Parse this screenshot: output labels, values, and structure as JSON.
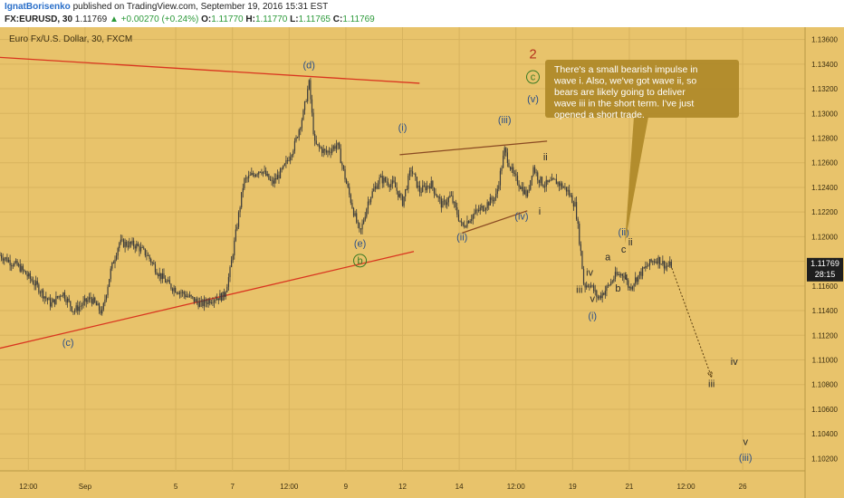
{
  "header": {
    "author": "IgnatBorisenko",
    "published_text": "published on TradingView.com, September 19, 2016 15:31 EST",
    "symbol": "FX:EURUSD, 30",
    "last": "1.11769",
    "change": "+0.00270 (+0.24%)",
    "o_label": "O:",
    "o_value": "1.11770",
    "h_label": "H:",
    "h_value": "1.11770",
    "l_label": "L:",
    "l_value": "1.11765",
    "c_label": "C:",
    "c_value": "1.11769"
  },
  "colors": {
    "background": "#e8c36b",
    "grid": "#d7b35e",
    "candles": "#3b3b3b",
    "trendline_red": "#d9351f",
    "trendline_brown": "#8a4a22",
    "label_blue": "#2b4f88",
    "label_dark": "#2b2b2b",
    "label_red": "#b5321e",
    "label_green": "#3a7a25",
    "callout_bg": "#b08a2a",
    "price_tag": "#1e1e1e"
  },
  "chart_data": {
    "type": "candlestick",
    "title": "Euro Fx/U.S. Dollar, 30, FXCM",
    "ylim": [
      1.101,
      1.137
    ],
    "y_ticks": [
      "1.13600",
      "1.13400",
      "1.13200",
      "1.13000",
      "1.12800",
      "1.12600",
      "1.12400",
      "1.12200",
      "1.12000",
      "1.11800",
      "1.11600",
      "1.11400",
      "1.11200",
      "1.11000",
      "1.10800",
      "1.10600",
      "1.10400",
      "1.10200"
    ],
    "x_ticks": [
      {
        "label": "12:00",
        "x": 0.5
      },
      {
        "label": "Sep",
        "x": 1.5
      },
      {
        "label": "5",
        "x": 3.1
      },
      {
        "label": "7",
        "x": 4.1
      },
      {
        "label": "12:00",
        "x": 5.1
      },
      {
        "label": "9",
        "x": 6.1
      },
      {
        "label": "12",
        "x": 7.1
      },
      {
        "label": "14",
        "x": 8.1
      },
      {
        "label": "12:00",
        "x": 9.1
      },
      {
        "label": "19",
        "x": 10.1
      },
      {
        "label": "21",
        "x": 11.1
      },
      {
        "label": "12:00",
        "x": 12.1
      },
      {
        "label": "26",
        "x": 13.1
      }
    ],
    "xlim": [
      0,
      14.2
    ],
    "price_path": [
      [
        0.0,
        1.1185
      ],
      [
        0.35,
        1.1175
      ],
      [
        0.65,
        1.116
      ],
      [
        0.9,
        1.1145
      ],
      [
        1.1,
        1.1155
      ],
      [
        1.3,
        1.114
      ],
      [
        1.6,
        1.115
      ],
      [
        1.8,
        1.1138
      ],
      [
        1.95,
        1.1172
      ],
      [
        2.1,
        1.1195
      ],
      [
        2.4,
        1.1193
      ],
      [
        2.6,
        1.1185
      ],
      [
        2.8,
        1.117
      ],
      [
        3.0,
        1.116
      ],
      [
        3.3,
        1.1152
      ],
      [
        3.55,
        1.1145
      ],
      [
        3.75,
        1.115
      ],
      [
        3.95,
        1.1152
      ],
      [
        4.05,
        1.117
      ],
      [
        4.2,
        1.1215
      ],
      [
        4.3,
        1.1245
      ],
      [
        4.45,
        1.125
      ],
      [
        4.6,
        1.1255
      ],
      [
        4.8,
        1.1243
      ],
      [
        5.0,
        1.1255
      ],
      [
        5.2,
        1.1275
      ],
      [
        5.35,
        1.13
      ],
      [
        5.45,
        1.1325
      ],
      [
        5.55,
        1.1275
      ],
      [
        5.75,
        1.1268
      ],
      [
        5.95,
        1.1275
      ],
      [
        6.1,
        1.1245
      ],
      [
        6.25,
        1.1218
      ],
      [
        6.35,
        1.1202
      ],
      [
        6.5,
        1.123
      ],
      [
        6.7,
        1.1247
      ],
      [
        6.95,
        1.1242
      ],
      [
        7.1,
        1.1228
      ],
      [
        7.25,
        1.1255
      ],
      [
        7.4,
        1.1237
      ],
      [
        7.6,
        1.1243
      ],
      [
        7.8,
        1.1225
      ],
      [
        7.95,
        1.1233
      ],
      [
        8.15,
        1.1208
      ],
      [
        8.35,
        1.1218
      ],
      [
        8.55,
        1.1225
      ],
      [
        8.75,
        1.1233
      ],
      [
        8.9,
        1.127
      ],
      [
        9.05,
        1.125
      ],
      [
        9.2,
        1.124
      ],
      [
        9.3,
        1.1233
      ],
      [
        9.4,
        1.1257
      ],
      [
        9.5,
        1.1247
      ],
      [
        9.6,
        1.1242
      ],
      [
        9.8,
        1.1245
      ],
      [
        10.0,
        1.1238
      ],
      [
        10.15,
        1.1225
      ],
      [
        10.25,
        1.1185
      ],
      [
        10.3,
        1.116
      ],
      [
        10.4,
        1.1162
      ],
      [
        10.55,
        1.115
      ],
      [
        10.7,
        1.1158
      ],
      [
        10.85,
        1.1168
      ],
      [
        11.0,
        1.117
      ],
      [
        11.1,
        1.1158
      ],
      [
        11.2,
        1.1165
      ],
      [
        11.35,
        1.1173
      ],
      [
        11.5,
        1.118
      ],
      [
        11.6,
        1.1182
      ],
      [
        11.75,
        1.1176
      ],
      [
        11.85,
        1.1177
      ]
    ],
    "trendlines": [
      {
        "color": "red",
        "from": [
          0.0,
          1.13455
        ],
        "to": [
          7.4,
          1.13245
        ]
      },
      {
        "color": "red",
        "from": [
          0.0,
          1.11095
        ],
        "to": [
          7.3,
          1.1188
        ]
      },
      {
        "color": "brown",
        "from": [
          7.05,
          1.12665
        ],
        "to": [
          9.65,
          1.12775
        ]
      },
      {
        "color": "brown",
        "from": [
          8.15,
          1.1203
        ],
        "to": [
          9.3,
          1.1221
        ]
      }
    ],
    "projection": {
      "from": [
        11.85,
        1.11745
      ],
      "to": [
        12.55,
        1.1086
      ]
    },
    "wave_labels": [
      {
        "text": "(d)",
        "x": 5.45,
        "y": 1.13365,
        "color": "blue"
      },
      {
        "text": "(c)",
        "x": 1.2,
        "y": 1.11115,
        "color": "blue"
      },
      {
        "text": "(e)",
        "x": 6.35,
        "y": 1.1192,
        "color": "blue"
      },
      {
        "text": "b",
        "x": 6.35,
        "y": 1.1178,
        "color": "green",
        "circled": true
      },
      {
        "text": "(i)",
        "x": 7.1,
        "y": 1.1286,
        "color": "blue"
      },
      {
        "text": "(iii)",
        "x": 8.9,
        "y": 1.1292,
        "color": "blue"
      },
      {
        "text": "(v)",
        "x": 9.4,
        "y": 1.1309,
        "color": "blue"
      },
      {
        "text": "c",
        "x": 9.4,
        "y": 1.1327,
        "color": "green",
        "circled": true
      },
      {
        "text": "2",
        "x": 9.4,
        "y": 1.1346,
        "color": "red"
      },
      {
        "text": "(ii)",
        "x": 8.15,
        "y": 1.1197,
        "color": "blue"
      },
      {
        "text": "(iv)",
        "x": 9.2,
        "y": 1.1214,
        "color": "blue"
      },
      {
        "text": "ii",
        "x": 9.62,
        "y": 1.1262,
        "color": "dark"
      },
      {
        "text": "i",
        "x": 9.52,
        "y": 1.1218,
        "color": "dark"
      },
      {
        "text": "iii",
        "x": 10.22,
        "y": 1.11545,
        "color": "dark"
      },
      {
        "text": "iv",
        "x": 10.4,
        "y": 1.11685,
        "color": "dark"
      },
      {
        "text": "v",
        "x": 10.45,
        "y": 1.1147,
        "color": "dark"
      },
      {
        "text": "(i)",
        "x": 10.45,
        "y": 1.1133,
        "color": "blue"
      },
      {
        "text": "a",
        "x": 10.72,
        "y": 1.1181,
        "color": "dark"
      },
      {
        "text": "b",
        "x": 10.9,
        "y": 1.11555,
        "color": "dark"
      },
      {
        "text": "(ii)",
        "x": 11.0,
        "y": 1.1201,
        "color": "blue"
      },
      {
        "text": "c",
        "x": 11.0,
        "y": 1.1187,
        "color": "dark"
      },
      {
        "text": "ii",
        "x": 11.12,
        "y": 1.1193,
        "color": "dark"
      },
      {
        "text": "i",
        "x": 11.04,
        "y": 1.1165,
        "color": "dark"
      },
      {
        "text": "iii",
        "x": 12.55,
        "y": 1.1078,
        "color": "dark"
      },
      {
        "text": "iv",
        "x": 12.95,
        "y": 1.1096,
        "color": "dark"
      },
      {
        "text": "v",
        "x": 13.15,
        "y": 1.1031,
        "color": "dark"
      },
      {
        "text": "(iii)",
        "x": 13.15,
        "y": 1.1018,
        "color": "blue"
      }
    ],
    "callout": "There's a small bearish impulse in wave i. Also, we've got wave ii, so bears are likely going to deliver wave iii in the short term. I've just opened a short trade.",
    "last_price": {
      "value": "1.11769",
      "timer": "28:15"
    }
  }
}
